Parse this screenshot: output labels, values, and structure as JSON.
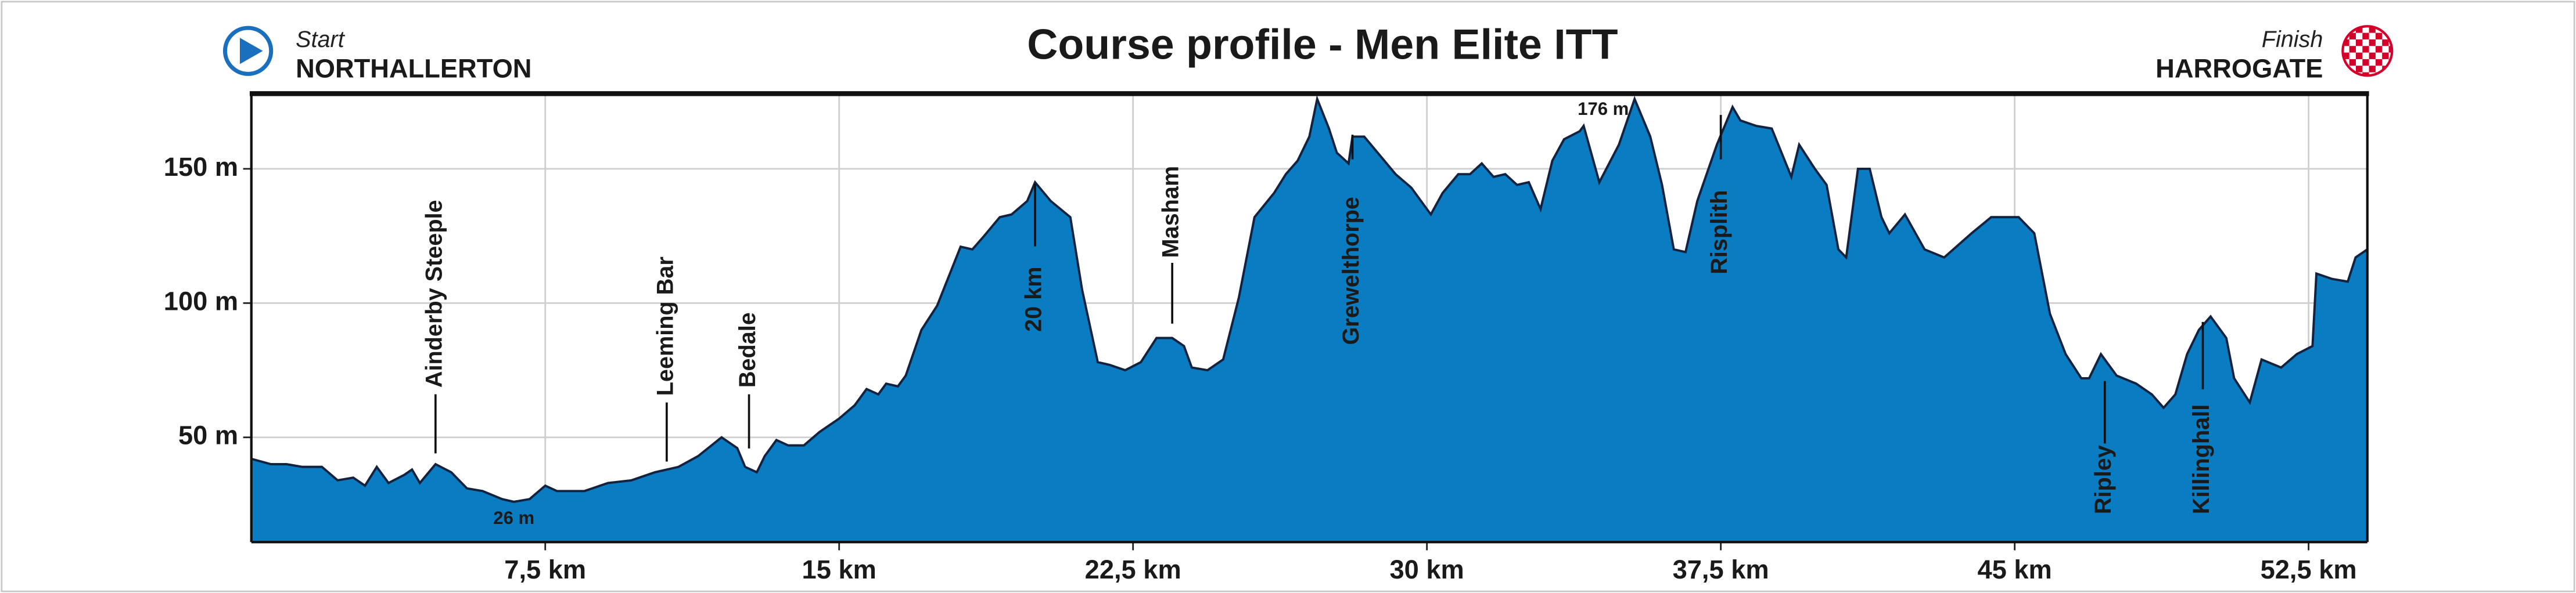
{
  "chart_data": {
    "type": "area",
    "title": "Course profile - Men Elite ITT",
    "start_label": "Start",
    "start_city": "NORTHALLERTON",
    "finish_label": "Finish",
    "finish_city": "HARROGATE",
    "color": "#0a7dc2",
    "x": [
      0,
      0.5,
      0.9,
      1.3,
      1.8,
      2.2,
      2.6,
      2.9,
      3.2,
      3.5,
      3.9,
      4.1,
      4.3,
      4.7,
      5.1,
      5.5,
      5.9,
      6.4,
      6.7,
      7.1,
      7.5,
      7.8,
      8.5,
      9.1,
      9.7,
      10.3,
      10.9,
      11.4,
      12.0,
      12.4,
      12.6,
      12.9,
      13.1,
      13.4,
      13.7,
      14.1,
      14.5,
      15.0,
      15.4,
      15.7,
      16.0,
      16.2,
      16.5,
      16.7,
      17.1,
      17.5,
      18.1,
      18.4,
      18.7,
      19.1,
      19.4,
      19.8,
      20.0,
      20.4,
      20.9,
      21.2,
      21.6,
      21.9,
      22.3,
      22.7,
      23.1,
      23.5,
      23.8,
      24.0,
      24.4,
      24.8,
      25.2,
      25.6,
      26.1,
      26.4,
      26.7,
      27.0,
      27.2,
      27.5,
      27.7,
      28.0,
      28.1,
      28.4,
      28.8,
      29.2,
      29.6,
      30.1,
      30.4,
      30.8,
      31.1,
      31.4,
      31.7,
      32.0,
      32.3,
      32.6,
      32.9,
      33.2,
      33.5,
      33.9,
      34.0,
      34.4,
      34.9,
      35.3,
      35.7,
      36.0,
      36.3,
      36.6,
      36.9,
      37.4,
      37.8,
      38.0,
      38.4,
      38.8,
      39.3,
      39.5,
      39.9,
      40.2,
      40.5,
      40.7,
      41.0,
      41.3,
      41.6,
      41.8,
      42.2,
      42.7,
      43.2,
      43.9,
      44.4,
      44.8,
      45.1,
      45.5,
      45.9,
      46.3,
      46.7,
      46.9,
      47.2,
      47.6,
      48.1,
      48.5,
      48.8,
      49.1,
      49.4,
      49.7,
      50.0,
      50.4,
      50.6,
      51.0,
      51.3,
      51.8,
      52.2,
      52.6,
      52.7,
      53.1,
      53.5,
      53.7,
      54.0
    ],
    "values": [
      42,
      40,
      40,
      39,
      39,
      34,
      35,
      32,
      39,
      33,
      36,
      38,
      33,
      40,
      37,
      31,
      30,
      27,
      26,
      27,
      32,
      30,
      30,
      33,
      34,
      37,
      39,
      43,
      50,
      46,
      39,
      37,
      43,
      49,
      47,
      47,
      52,
      57,
      62,
      68,
      66,
      70,
      69,
      73,
      90,
      99,
      121,
      120,
      125,
      132,
      133,
      138,
      145,
      138,
      132,
      105,
      78,
      77,
      75,
      78,
      87,
      87,
      84,
      76,
      75,
      79,
      102,
      132,
      141,
      148,
      153,
      162,
      176,
      165,
      156,
      152,
      162,
      162,
      155,
      148,
      143,
      133,
      141,
      148,
      148,
      152,
      147,
      148,
      144,
      145,
      135,
      153,
      161,
      164,
      166,
      145,
      159,
      176,
      162,
      144,
      120,
      119,
      138,
      159,
      173,
      168,
      166,
      165,
      147,
      159,
      150,
      144,
      120,
      117,
      150,
      150,
      132,
      126,
      133,
      120,
      117,
      126,
      132,
      132,
      132,
      126,
      96,
      81,
      72,
      72,
      81,
      73,
      70,
      66,
      61,
      66,
      81,
      90,
      95,
      87,
      72,
      63,
      79,
      76,
      81,
      84,
      111,
      109,
      108,
      117,
      120
    ],
    "xlim": [
      0,
      54
    ],
    "ylim": [
      11,
      178
    ],
    "xticks": [
      {
        "value": 7.5,
        "label": "7,5 km"
      },
      {
        "value": 15,
        "label": "15 km"
      },
      {
        "value": 22.5,
        "label": "22,5 km"
      },
      {
        "value": 30,
        "label": "30 km"
      },
      {
        "value": 37.5,
        "label": "37,5 km"
      },
      {
        "value": 45,
        "label": "45 km"
      },
      {
        "value": 52.5,
        "label": "52,5 km"
      }
    ],
    "yticks": [
      {
        "value": 50,
        "label": "50 m"
      },
      {
        "value": 100,
        "label": "100 m"
      },
      {
        "value": 150,
        "label": "150 m"
      }
    ],
    "grid": true,
    "annotations": [
      {
        "label": "Ainderby Steeple",
        "x": 4.7
      },
      {
        "label": "Leeming Bar",
        "x": 10.6
      },
      {
        "label": "Bedale",
        "x": 12.7
      },
      {
        "label": "20 km",
        "x": 20.0
      },
      {
        "label": "Masham",
        "x": 23.5
      },
      {
        "label": "Grewelthorpe",
        "x": 28.1
      },
      {
        "label": "Risplith",
        "x": 37.5
      },
      {
        "label": "Ripley",
        "x": 47.3
      },
      {
        "label": "Killinghall",
        "x": 49.8
      },
      {
        "label": "26 m",
        "x": 6.7
      },
      {
        "label": "176 m",
        "x": 34.5
      }
    ]
  }
}
